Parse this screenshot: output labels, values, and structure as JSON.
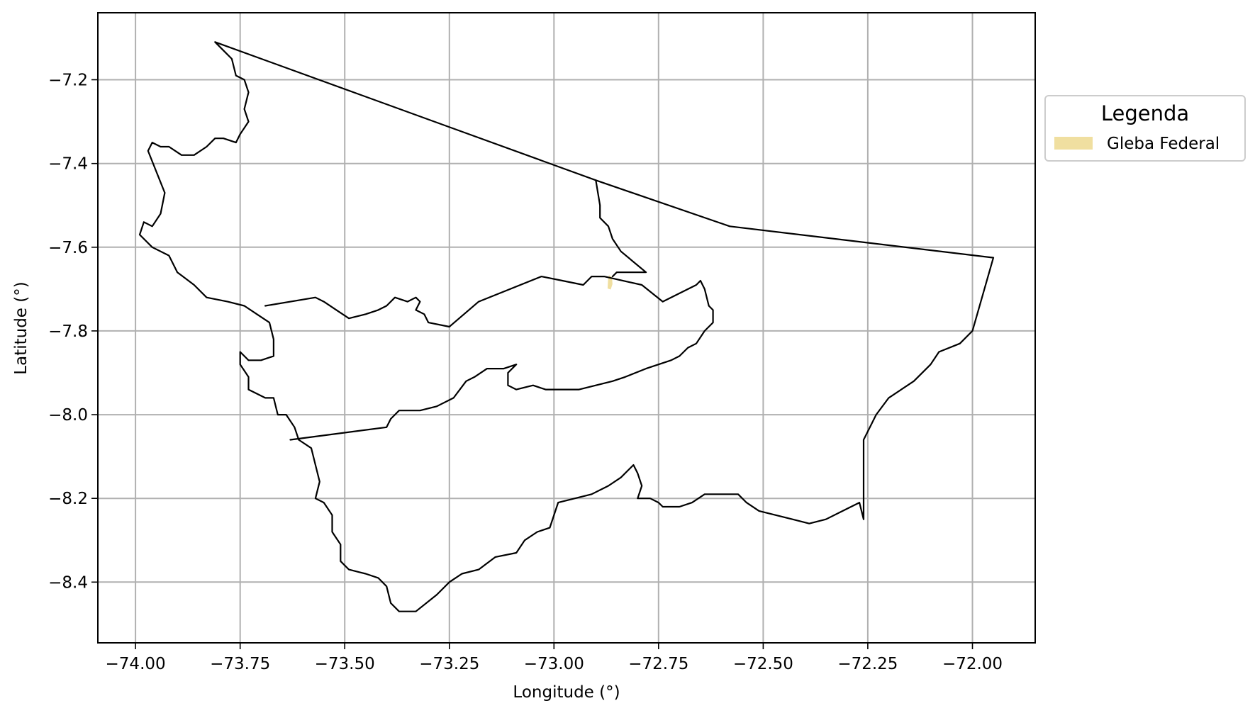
{
  "chart_data": {
    "type": "map",
    "xlabel": "Longitude (°)",
    "ylabel": "Latitude (°)",
    "xlim": [
      -74.09,
      -71.85
    ],
    "ylim": [
      -8.545,
      -7.04
    ],
    "x_ticks": [
      -74.0,
      -73.75,
      -73.5,
      -73.25,
      -73.0,
      -72.75,
      -72.5,
      -72.25,
      -72.0
    ],
    "x_tick_labels": [
      "−74.00",
      "−73.75",
      "−73.50",
      "−73.25",
      "−73.00",
      "−72.75",
      "−72.50",
      "−72.25",
      "−72.00"
    ],
    "y_ticks": [
      -7.2,
      -7.4,
      -7.6,
      -7.8,
      -8.0,
      -8.2,
      -8.4
    ],
    "y_tick_labels": [
      "−7.2",
      "−7.4",
      "−7.6",
      "−7.8",
      "−8.0",
      "−8.2",
      "−8.4"
    ],
    "grid": true,
    "legend": {
      "title": "Legenda",
      "placement": "outside-upper-right",
      "entries": [
        {
          "label": "Gleba Federal",
          "color": "#f0dfa0"
        }
      ]
    },
    "boundary_color": "#000000",
    "polygons": [
      {
        "name": "",
        "closed": true,
        "coords": [
          [
            -73.81,
            -7.11
          ],
          [
            -73.79,
            -7.13
          ],
          [
            -73.77,
            -7.15
          ],
          [
            -73.76,
            -7.19
          ],
          [
            -73.74,
            -7.2
          ],
          [
            -73.73,
            -7.23
          ],
          [
            -73.74,
            -7.27
          ],
          [
            -73.73,
            -7.3
          ],
          [
            -73.75,
            -7.33
          ],
          [
            -73.76,
            -7.35
          ],
          [
            -73.79,
            -7.34
          ],
          [
            -73.81,
            -7.34
          ],
          [
            -73.83,
            -7.36
          ],
          [
            -73.86,
            -7.38
          ],
          [
            -73.89,
            -7.38
          ],
          [
            -73.92,
            -7.36
          ],
          [
            -73.94,
            -7.36
          ],
          [
            -73.96,
            -7.35
          ],
          [
            -73.97,
            -7.37
          ],
          [
            -73.95,
            -7.42
          ],
          [
            -73.93,
            -7.47
          ],
          [
            -73.94,
            -7.52
          ],
          [
            -73.96,
            -7.55
          ],
          [
            -73.98,
            -7.54
          ],
          [
            -73.99,
            -7.57
          ],
          [
            -73.96,
            -7.6
          ],
          [
            -73.92,
            -7.62
          ],
          [
            -73.9,
            -7.66
          ],
          [
            -73.86,
            -7.69
          ],
          [
            -73.83,
            -7.72
          ],
          [
            -73.78,
            -7.73
          ],
          [
            -73.74,
            -7.74
          ],
          [
            -73.71,
            -7.76
          ],
          [
            -73.68,
            -7.78
          ],
          [
            -73.67,
            -7.82
          ],
          [
            -73.67,
            -7.86
          ],
          [
            -73.7,
            -7.87
          ],
          [
            -73.73,
            -7.87
          ],
          [
            -73.75,
            -7.85
          ],
          [
            -73.75,
            -7.88
          ],
          [
            -73.73,
            -7.91
          ],
          [
            -73.73,
            -7.94
          ],
          [
            -73.69,
            -7.96
          ],
          [
            -73.67,
            -7.96
          ],
          [
            -73.66,
            -8.0
          ],
          [
            -73.64,
            -8.0
          ],
          [
            -73.62,
            -8.03
          ],
          [
            -73.61,
            -8.06
          ],
          [
            -73.58,
            -8.08
          ],
          [
            -73.57,
            -8.12
          ],
          [
            -73.56,
            -8.16
          ],
          [
            -73.57,
            -8.2
          ],
          [
            -73.55,
            -8.21
          ],
          [
            -73.53,
            -8.24
          ],
          [
            -73.53,
            -8.28
          ],
          [
            -73.51,
            -8.31
          ],
          [
            -73.51,
            -8.35
          ],
          [
            -73.49,
            -8.37
          ],
          [
            -73.45,
            -8.38
          ],
          [
            -73.42,
            -8.39
          ],
          [
            -73.4,
            -8.41
          ],
          [
            -73.39,
            -8.45
          ],
          [
            -73.37,
            -8.47
          ],
          [
            -73.33,
            -8.47
          ],
          [
            -73.28,
            -8.43
          ],
          [
            -73.25,
            -8.4
          ],
          [
            -73.22,
            -8.38
          ],
          [
            -73.18,
            -8.37
          ],
          [
            -73.14,
            -8.34
          ],
          [
            -73.09,
            -8.33
          ],
          [
            -73.07,
            -8.3
          ],
          [
            -73.04,
            -8.28
          ],
          [
            -73.01,
            -8.27
          ],
          [
            -72.99,
            -8.21
          ],
          [
            -72.95,
            -8.2
          ],
          [
            -72.91,
            -8.19
          ],
          [
            -72.87,
            -8.17
          ],
          [
            -72.84,
            -8.15
          ],
          [
            -72.82,
            -8.13
          ],
          [
            -72.81,
            -8.12
          ],
          [
            -72.8,
            -8.14
          ],
          [
            -72.79,
            -8.17
          ],
          [
            -72.8,
            -8.2
          ],
          [
            -72.77,
            -8.2
          ],
          [
            -72.75,
            -8.21
          ],
          [
            -72.74,
            -8.22
          ],
          [
            -72.72,
            -8.22
          ],
          [
            -72.7,
            -8.22
          ],
          [
            -72.67,
            -8.21
          ],
          [
            -72.64,
            -8.19
          ],
          [
            -72.59,
            -8.19
          ],
          [
            -72.56,
            -8.19
          ],
          [
            -72.54,
            -8.21
          ],
          [
            -72.51,
            -8.23
          ],
          [
            -72.47,
            -8.24
          ],
          [
            -72.43,
            -8.25
          ],
          [
            -72.39,
            -8.26
          ],
          [
            -72.35,
            -8.25
          ],
          [
            -72.31,
            -8.23
          ],
          [
            -72.29,
            -8.22
          ],
          [
            -72.27,
            -8.21
          ],
          [
            -72.26,
            -8.25
          ],
          [
            -72.26,
            -8.22
          ],
          [
            -72.26,
            -8.06
          ],
          [
            -72.25,
            -8.04
          ],
          [
            -72.23,
            -8.0
          ],
          [
            -72.2,
            -7.96
          ],
          [
            -72.14,
            -7.92
          ],
          [
            -72.1,
            -7.88
          ],
          [
            -72.08,
            -7.85
          ],
          [
            -72.03,
            -7.83
          ],
          [
            -72.0,
            -7.8
          ],
          [
            -71.95,
            -7.625
          ],
          [
            -72.58,
            -7.55
          ],
          [
            -72.9,
            -7.44
          ],
          [
            -73.81,
            -7.11
          ]
        ]
      },
      {
        "name": "",
        "closed": false,
        "coords": [
          [
            -73.69,
            -7.74
          ],
          [
            -73.57,
            -7.72
          ],
          [
            -73.55,
            -7.73
          ],
          [
            -73.52,
            -7.75
          ],
          [
            -73.49,
            -7.77
          ],
          [
            -73.45,
            -7.76
          ],
          [
            -73.42,
            -7.75
          ],
          [
            -73.4,
            -7.74
          ],
          [
            -73.38,
            -7.72
          ],
          [
            -73.35,
            -7.73
          ],
          [
            -73.33,
            -7.72
          ],
          [
            -73.32,
            -7.73
          ],
          [
            -73.33,
            -7.75
          ],
          [
            -73.31,
            -7.76
          ],
          [
            -73.3,
            -7.78
          ],
          [
            -73.25,
            -7.79
          ],
          [
            -73.18,
            -7.73
          ],
          [
            -73.03,
            -7.67
          ],
          [
            -72.98,
            -7.68
          ],
          [
            -72.93,
            -7.69
          ],
          [
            -72.91,
            -7.67
          ],
          [
            -72.88,
            -7.67
          ],
          [
            -72.79,
            -7.69
          ],
          [
            -72.74,
            -7.73
          ],
          [
            -72.66,
            -7.69
          ],
          [
            -72.65,
            -7.68
          ],
          [
            -72.64,
            -7.7
          ],
          [
            -72.63,
            -7.74
          ],
          [
            -72.62,
            -7.75
          ],
          [
            -72.62,
            -7.78
          ],
          [
            -72.64,
            -7.8
          ],
          [
            -72.66,
            -7.83
          ],
          [
            -72.68,
            -7.84
          ],
          [
            -72.7,
            -7.86
          ],
          [
            -72.72,
            -7.87
          ],
          [
            -72.75,
            -7.88
          ],
          [
            -72.78,
            -7.89
          ],
          [
            -72.83,
            -7.91
          ],
          [
            -72.86,
            -7.92
          ],
          [
            -72.9,
            -7.93
          ],
          [
            -72.94,
            -7.94
          ],
          [
            -72.98,
            -7.94
          ],
          [
            -73.02,
            -7.94
          ],
          [
            -73.05,
            -7.93
          ],
          [
            -73.09,
            -7.94
          ],
          [
            -73.11,
            -7.93
          ],
          [
            -73.11,
            -7.9
          ],
          [
            -73.09,
            -7.88
          ],
          [
            -73.12,
            -7.89
          ],
          [
            -73.16,
            -7.89
          ],
          [
            -73.19,
            -7.91
          ],
          [
            -73.21,
            -7.92
          ],
          [
            -73.24,
            -7.96
          ],
          [
            -73.28,
            -7.98
          ],
          [
            -73.32,
            -7.99
          ],
          [
            -73.37,
            -7.99
          ],
          [
            -73.39,
            -8.01
          ],
          [
            -73.4,
            -8.03
          ],
          [
            -73.63,
            -8.06
          ]
        ]
      },
      {
        "name": "",
        "closed": false,
        "coords": [
          [
            -72.9,
            -7.44
          ],
          [
            -72.89,
            -7.5
          ],
          [
            -72.89,
            -7.53
          ],
          [
            -72.87,
            -7.55
          ],
          [
            -72.86,
            -7.58
          ],
          [
            -72.84,
            -7.61
          ],
          [
            -72.78,
            -7.66
          ],
          [
            -72.85,
            -7.66
          ],
          [
            -72.86,
            -7.67
          ]
        ]
      }
    ],
    "filled_areas": [
      {
        "label": "Gleba Federal",
        "coords": [
          [
            -72.868,
            -7.668
          ],
          [
            -72.862,
            -7.672
          ],
          [
            -72.861,
            -7.688
          ],
          [
            -72.865,
            -7.7
          ],
          [
            -72.871,
            -7.698
          ],
          [
            -72.87,
            -7.68
          ]
        ]
      }
    ]
  }
}
